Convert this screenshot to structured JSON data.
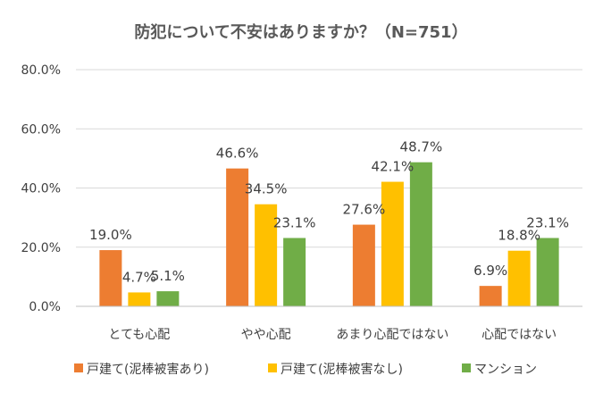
{
  "chart_data": {
    "type": "bar",
    "title": "防犯について不安はありますか？（N=751）",
    "categories": [
      "とても心配",
      "やや心配",
      "あまり心配ではない",
      "心配ではない"
    ],
    "series": [
      {
        "name": "戸建て(泥棒被害あり)",
        "color": "#ED7D31",
        "values": [
          19.0,
          46.6,
          27.6,
          6.9
        ],
        "labels": [
          "19.0%",
          "46.6%",
          "27.6%",
          "6.9%"
        ]
      },
      {
        "name": "戸建て(泥棒被害なし)",
        "color": "#FFC000",
        "values": [
          4.7,
          34.5,
          42.1,
          18.8
        ],
        "labels": [
          "4.7%",
          "34.5%",
          "42.1%",
          "18.8%"
        ]
      },
      {
        "name": "マンション",
        "color": "#70AD47",
        "values": [
          5.1,
          23.1,
          48.7,
          23.1
        ],
        "labels": [
          "5.1%",
          "23.1%",
          "48.7%",
          "23.1%"
        ]
      }
    ],
    "y_ticks": [
      "0.0%",
      "20.0%",
      "40.0%",
      "60.0%",
      "80.0%"
    ],
    "ylim": [
      0,
      80
    ],
    "xlabel": "",
    "ylabel": "",
    "grid": true,
    "legend_position": "bottom"
  }
}
